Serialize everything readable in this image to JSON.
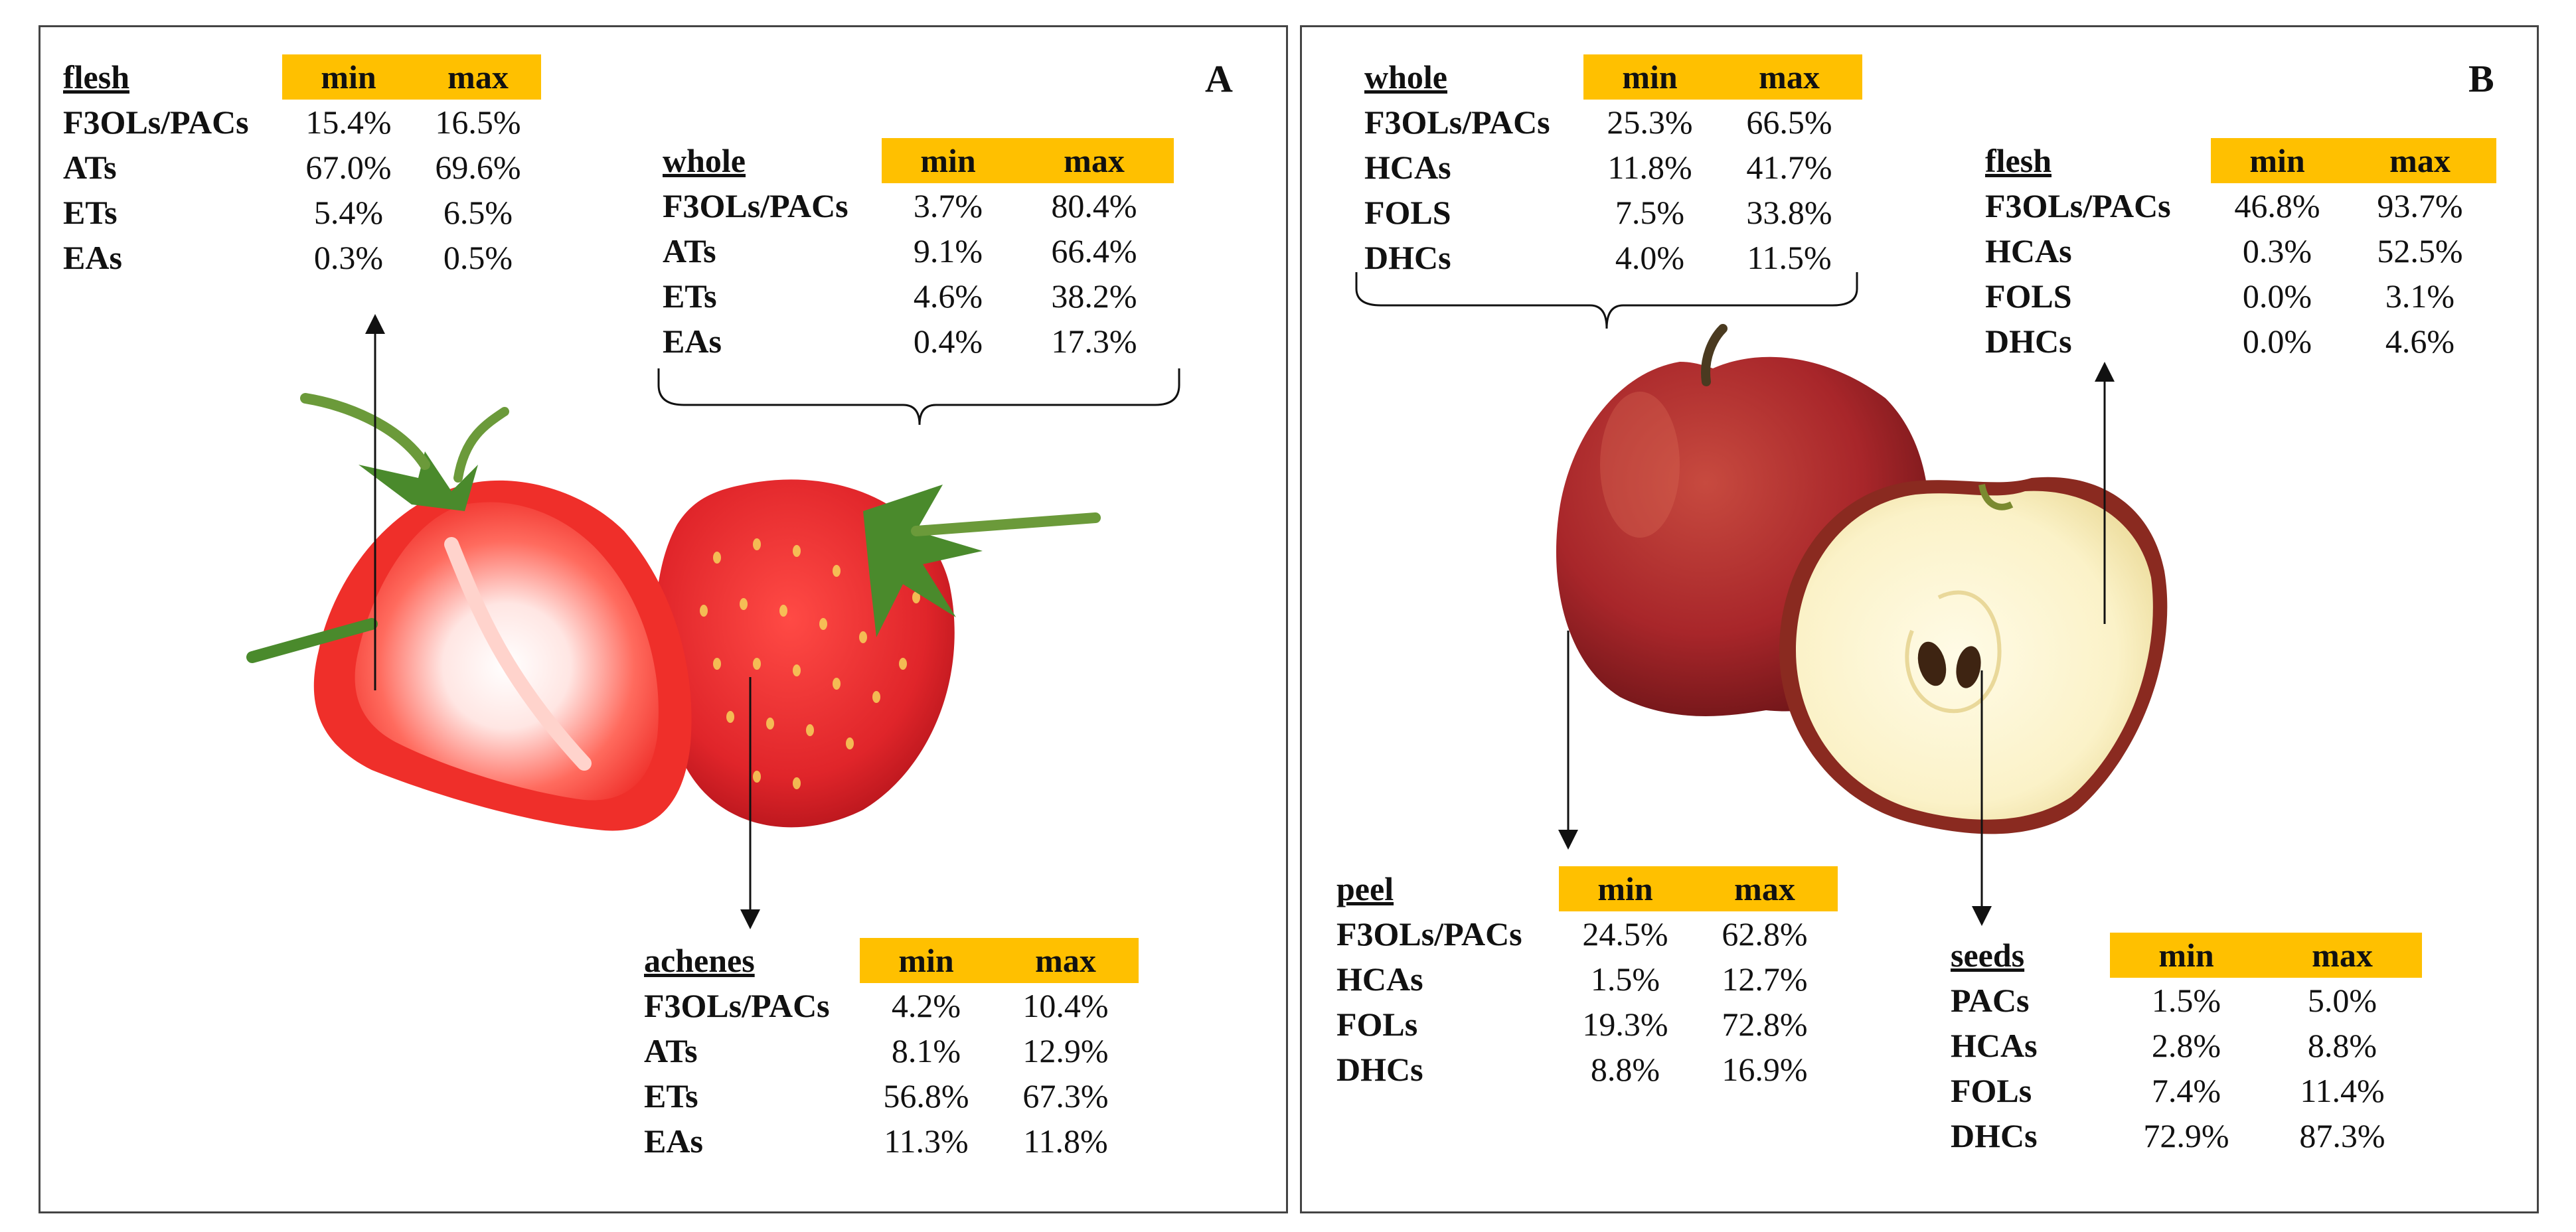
{
  "panel_a": {
    "letter": "A",
    "min_label": "min",
    "max_label": "max",
    "tables": {
      "flesh": {
        "title": "flesh",
        "rows": [
          {
            "label": "F3OLs/PACs",
            "min": "15.4%",
            "max": "16.5%"
          },
          {
            "label": "ATs",
            "min": "67.0%",
            "max": "69.6%"
          },
          {
            "label": "ETs",
            "min": "5.4%",
            "max": "6.5%"
          },
          {
            "label": "EAs",
            "min": "0.3%",
            "max": "0.5%"
          }
        ]
      },
      "whole": {
        "title": "whole",
        "rows": [
          {
            "label": "F3OLs/PACs",
            "min": "3.7%",
            "max": "80.4%"
          },
          {
            "label": "ATs",
            "min": "9.1%",
            "max": "66.4%"
          },
          {
            "label": "ETs",
            "min": "4.6%",
            "max": "38.2%"
          },
          {
            "label": "EAs",
            "min": "0.4%",
            "max": "17.3%"
          }
        ]
      },
      "achenes": {
        "title": "achenes",
        "rows": [
          {
            "label": "F3OLs/PACs",
            "min": "4.2%",
            "max": "10.4%"
          },
          {
            "label": "ATs",
            "min": "8.1%",
            "max": "12.9%"
          },
          {
            "label": "ETs",
            "min": "56.8%",
            "max": "67.3%"
          },
          {
            "label": "EAs",
            "min": "11.3%",
            "max": "11.8%"
          }
        ]
      }
    }
  },
  "panel_b": {
    "letter": "B",
    "min_label": "min",
    "max_label": "max",
    "tables": {
      "whole": {
        "title": "whole",
        "rows": [
          {
            "label": "F3OLs/PACs",
            "min": "25.3%",
            "max": "66.5%"
          },
          {
            "label": "HCAs",
            "min": "11.8%",
            "max": "41.7%"
          },
          {
            "label": "FOLS",
            "min": "7.5%",
            "max": "33.8%"
          },
          {
            "label": "DHCs",
            "min": "4.0%",
            "max": "11.5%"
          }
        ]
      },
      "flesh": {
        "title": "flesh",
        "rows": [
          {
            "label": "F3OLs/PACs",
            "min": "46.8%",
            "max": "93.7%"
          },
          {
            "label": "HCAs",
            "min": "0.3%",
            "max": "52.5%"
          },
          {
            "label": "FOLS",
            "min": "0.0%",
            "max": "3.1%"
          },
          {
            "label": "DHCs",
            "min": "0.0%",
            "max": "4.6%"
          }
        ]
      },
      "peel": {
        "title": "peel",
        "rows": [
          {
            "label": "F3OLs/PACs",
            "min": "24.5%",
            "max": "62.8%"
          },
          {
            "label": "HCAs",
            "min": "1.5%",
            "max": "12.7%"
          },
          {
            "label": "FOLs",
            "min": "19.3%",
            "max": "72.8%"
          },
          {
            "label": "DHCs",
            "min": "8.8%",
            "max": "16.9%"
          }
        ]
      },
      "seeds": {
        "title": "seeds",
        "rows": [
          {
            "label": "PACs",
            "min": "1.5%",
            "max": "5.0%"
          },
          {
            "label": "HCAs",
            "min": "2.8%",
            "max": "8.8%"
          },
          {
            "label": "FOLs",
            "min": "7.4%",
            "max": "11.4%"
          },
          {
            "label": "DHCs",
            "min": "72.9%",
            "max": "87.3%"
          }
        ]
      }
    }
  },
  "colors": {
    "header_fill": "#ffc000",
    "strawberry_red": "#e0252a",
    "apple_red": "#a8262a",
    "apple_flesh": "#fbf2c8"
  },
  "illustrations": {
    "panel_a_image": "strawberry-halved-and-whole",
    "panel_b_image": "apple-whole-and-halved"
  }
}
